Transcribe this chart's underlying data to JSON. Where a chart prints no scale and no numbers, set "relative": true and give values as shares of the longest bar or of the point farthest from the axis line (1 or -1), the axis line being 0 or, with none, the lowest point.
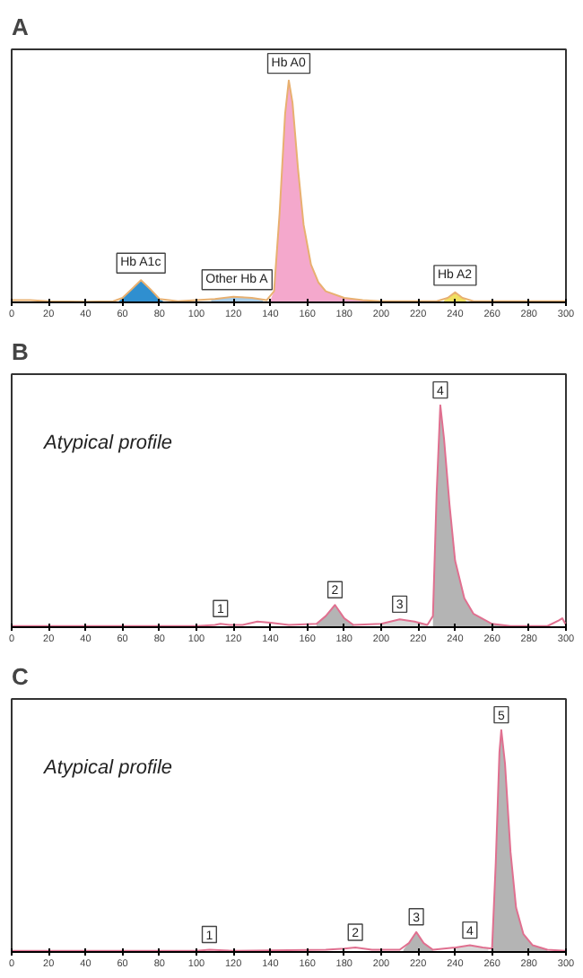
{
  "chart_data": [
    {
      "type": "area",
      "title": "A",
      "relative": true,
      "xlim": [
        0,
        300
      ],
      "xticks": [
        0,
        20,
        40,
        60,
        80,
        100,
        120,
        140,
        160,
        180,
        200,
        220,
        240,
        260,
        280,
        300
      ],
      "tick_labels": "x",
      "series": [
        {
          "color": "#2f8fd0",
          "x": [
            58,
            60,
            65,
            70,
            75,
            80,
            82
          ],
          "values": [
            0.005,
            0.02,
            0.06,
            0.1,
            0.06,
            0.015,
            0.005
          ]
        },
        {
          "color": "#a8cce8",
          "x": [
            108,
            115,
            120,
            125,
            130,
            136
          ],
          "values": [
            0.012,
            0.02,
            0.025,
            0.025,
            0.02,
            0.012
          ]
        },
        {
          "color": "#f4a8cc",
          "x": [
            140,
            142,
            145,
            148,
            150,
            152,
            155,
            158,
            162,
            166,
            170,
            180,
            190,
            200
          ],
          "values": [
            0.01,
            0.05,
            0.4,
            0.85,
            1.0,
            0.9,
            0.6,
            0.35,
            0.17,
            0.09,
            0.05,
            0.02,
            0.01,
            0.005
          ]
        },
        {
          "color": "#f0e060",
          "x": [
            234,
            236,
            240,
            244,
            246
          ],
          "values": [
            0.008,
            0.02,
            0.045,
            0.02,
            0.008
          ]
        },
        {
          "type": "line",
          "color": "#e8b070",
          "x": [
            0,
            10,
            20,
            40,
            55,
            60,
            65,
            70,
            75,
            80,
            90,
            100,
            110,
            120,
            130,
            138,
            142,
            145,
            148,
            150,
            152,
            155,
            158,
            162,
            166,
            170,
            180,
            190,
            200,
            230,
            236,
            240,
            244,
            250,
            300
          ],
          "values": [
            0.01,
            0.01,
            0.005,
            0.003,
            0.005,
            0.02,
            0.06,
            0.1,
            0.06,
            0.015,
            0.005,
            0.01,
            0.015,
            0.025,
            0.02,
            0.01,
            0.05,
            0.4,
            0.85,
            1.0,
            0.9,
            0.6,
            0.35,
            0.17,
            0.09,
            0.05,
            0.02,
            0.01,
            0.005,
            0.005,
            0.02,
            0.045,
            0.02,
            0.005,
            0.005
          ]
        }
      ],
      "annotations": [
        {
          "text": "Hb A1c",
          "x": 70,
          "y": 0.1
        },
        {
          "text": "Other Hb A",
          "x": 122,
          "y": 0.025
        },
        {
          "text": "Hb A0",
          "x": 150,
          "y": 1.0
        },
        {
          "text": "Hb A2",
          "x": 240,
          "y": 0.045
        }
      ]
    },
    {
      "type": "area",
      "title": "B",
      "subtitle": "Atypical profile",
      "relative": true,
      "xlim": [
        0,
        300
      ],
      "xticks": [
        0,
        20,
        40,
        60,
        80,
        100,
        120,
        140,
        160,
        180,
        200,
        220,
        240,
        260,
        280,
        300
      ],
      "tick_labels": "x",
      "series": [
        {
          "color": "#b4b4b4",
          "x": [
            165,
            170,
            175,
            180,
            185
          ],
          "values": [
            0.015,
            0.05,
            0.1,
            0.04,
            0.01
          ]
        },
        {
          "color": "#d8d8d8",
          "x": [
            200,
            210,
            218,
            225
          ],
          "values": [
            0.015,
            0.035,
            0.025,
            0.01
          ]
        },
        {
          "color": "#b4b4b4",
          "x": [
            228,
            230,
            232,
            234,
            237,
            240,
            245,
            250,
            260,
            270
          ],
          "values": [
            0.05,
            0.6,
            1.0,
            0.85,
            0.55,
            0.3,
            0.13,
            0.06,
            0.015,
            0.005
          ]
        },
        {
          "type": "line",
          "color": "#e07090",
          "x": [
            0,
            100,
            110,
            113,
            118,
            125,
            133,
            140,
            150,
            165,
            170,
            175,
            180,
            185,
            200,
            210,
            218,
            225,
            228,
            230,
            232,
            234,
            237,
            240,
            245,
            250,
            260,
            270,
            290,
            296,
            298,
            300
          ],
          "values": [
            0.005,
            0.005,
            0.01,
            0.015,
            0.01,
            0.01,
            0.025,
            0.02,
            0.01,
            0.015,
            0.05,
            0.1,
            0.04,
            0.01,
            0.015,
            0.035,
            0.025,
            0.01,
            0.05,
            0.6,
            1.0,
            0.85,
            0.55,
            0.3,
            0.13,
            0.06,
            0.015,
            0.005,
            0.005,
            0.03,
            0.04,
            0.01
          ]
        }
      ],
      "annotations": [
        {
          "text": "1",
          "x": 113,
          "y": 0.015
        },
        {
          "text": "2",
          "x": 175,
          "y": 0.1
        },
        {
          "text": "3",
          "x": 210,
          "y": 0.035
        },
        {
          "text": "4",
          "x": 232,
          "y": 1.0
        }
      ]
    },
    {
      "type": "area",
      "title": "C",
      "subtitle": "Atypical profile",
      "relative": true,
      "xlim": [
        0,
        300
      ],
      "xticks": [
        0,
        20,
        40,
        60,
        80,
        100,
        120,
        140,
        160,
        180,
        200,
        220,
        240,
        260,
        280,
        300
      ],
      "tick_labels": "x",
      "series": [
        {
          "color": "#b4b4b4",
          "x": [
            212,
            215,
            219,
            223,
            228
          ],
          "values": [
            0.01,
            0.04,
            0.09,
            0.04,
            0.01
          ]
        },
        {
          "color": "#d8d8d8",
          "x": [
            240,
            248,
            255,
            258
          ],
          "values": [
            0.02,
            0.03,
            0.02,
            0.016
          ]
        },
        {
          "color": "#b4b4b4",
          "x": [
            260,
            262,
            264,
            265,
            267,
            270,
            273,
            277,
            282,
            290
          ],
          "values": [
            0.015,
            0.4,
            0.9,
            1.0,
            0.85,
            0.45,
            0.2,
            0.08,
            0.03,
            0.01
          ]
        },
        {
          "type": "line",
          "color": "#e07090",
          "x": [
            0,
            100,
            107,
            120,
            170,
            180,
            186,
            195,
            210,
            215,
            219,
            223,
            228,
            240,
            248,
            255,
            260,
            262,
            264,
            265,
            267,
            270,
            273,
            277,
            282,
            290,
            300
          ],
          "values": [
            0.005,
            0.005,
            0.01,
            0.005,
            0.01,
            0.015,
            0.02,
            0.01,
            0.01,
            0.04,
            0.09,
            0.04,
            0.01,
            0.02,
            0.03,
            0.02,
            0.015,
            0.4,
            0.9,
            1.0,
            0.85,
            0.45,
            0.2,
            0.08,
            0.03,
            0.01,
            0.005
          ]
        }
      ],
      "annotations": [
        {
          "text": "1",
          "x": 107,
          "y": 0.01
        },
        {
          "text": "2",
          "x": 186,
          "y": 0.02
        },
        {
          "text": "3",
          "x": 219,
          "y": 0.09
        },
        {
          "text": "4",
          "x": 248,
          "y": 0.03
        },
        {
          "text": "5",
          "x": 265,
          "y": 1.0
        }
      ]
    }
  ]
}
